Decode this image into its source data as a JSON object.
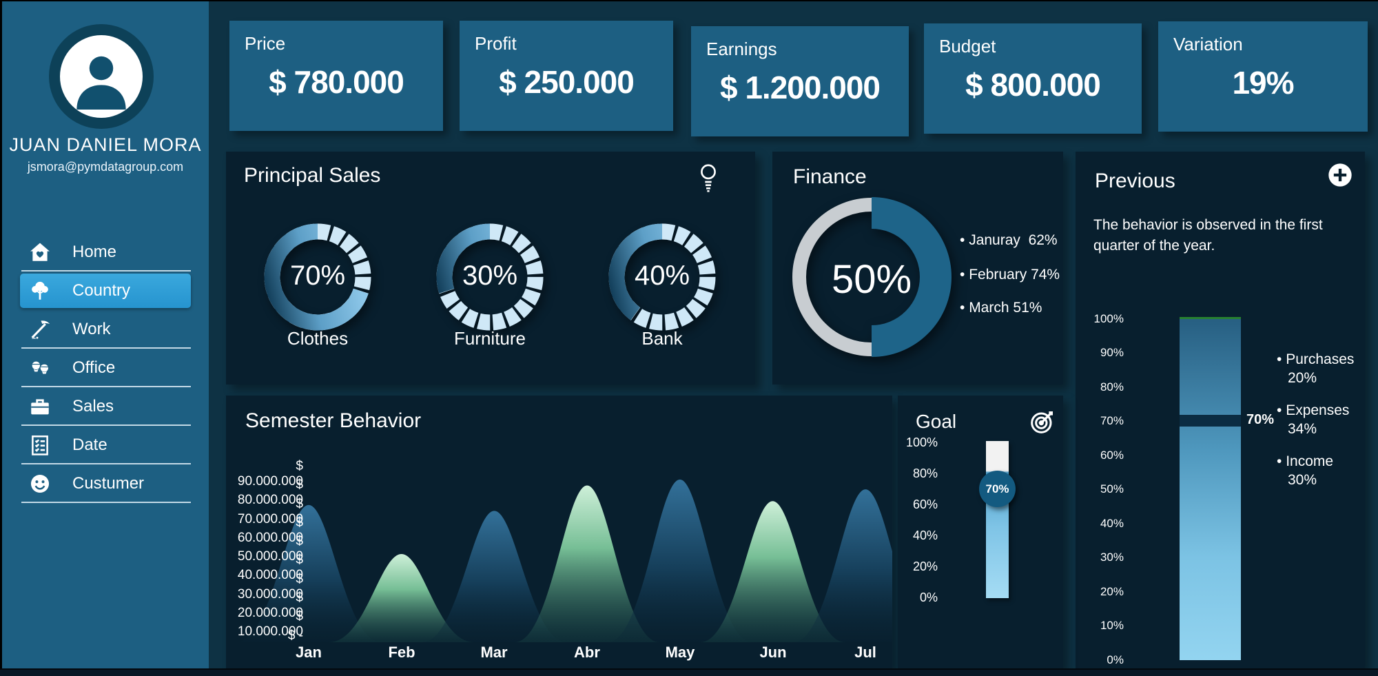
{
  "app": {
    "background": "#0e3244",
    "panel_color": "#081f2e",
    "card_color": "#1d5f82",
    "accent": "#2e9fd6",
    "tick_blue": "#cfe8f7"
  },
  "sidebar": {
    "name": "JUAN DANIEL MORA",
    "email": "jsmora@pymdatagroup.com",
    "items": [
      {
        "label": "Home",
        "icon": "home-icon",
        "active": false
      },
      {
        "label": "Country",
        "icon": "tree-icon",
        "active": true
      },
      {
        "label": "Work",
        "icon": "pickaxe-icon",
        "active": false
      },
      {
        "label": "Office",
        "icon": "workers-icon",
        "active": false
      },
      {
        "label": "Sales",
        "icon": "briefcase-icon",
        "active": false
      },
      {
        "label": "Date",
        "icon": "checklist-icon",
        "active": false
      },
      {
        "label": "Custumer",
        "icon": "smiley-icon",
        "active": false
      }
    ]
  },
  "kpis": [
    {
      "label": "Price",
      "value": "$ 780.000"
    },
    {
      "label": "Profit",
      "value": "$ 250.000"
    },
    {
      "label": "Earnings",
      "value": "$ 1.200.000"
    },
    {
      "label": "Budget",
      "value": "$ 800.000"
    },
    {
      "label": "Variation",
      "value": "19%"
    }
  ],
  "panels": {
    "principal_sales": {
      "title": "Principal Sales",
      "icon": "lightbulb-icon",
      "donuts": [
        {
          "label": "Clothes",
          "percent_label": "70%"
        },
        {
          "label": "Furniture",
          "percent_label": "30%"
        },
        {
          "label": "Bank",
          "percent_label": "40%"
        }
      ]
    },
    "finance": {
      "title": "Finance",
      "center_label": "50%",
      "legend": [
        {
          "label": "Januray",
          "value": "62%"
        },
        {
          "label": "February",
          "value": "74%"
        },
        {
          "label": "March",
          "value": "51%"
        }
      ]
    },
    "previous": {
      "title": "Previous",
      "icon": "plus-icon",
      "description": "The behavior is observed in the first quarter of the year.",
      "axis_ticks": [
        "100%",
        "90%",
        "80%",
        "70%",
        "60%",
        "50%",
        "40%",
        "30%",
        "20%",
        "10%",
        "0%"
      ],
      "marker_label": "70%",
      "legend": [
        {
          "label": "Purchases",
          "value": "20%"
        },
        {
          "label": "Expenses",
          "value": "34%"
        },
        {
          "label": "Income",
          "value": "30%"
        }
      ]
    },
    "semester": {
      "title": "Semester Behavior",
      "y_ticks": [
        "$ 90.000.000",
        "$ 80.000.000",
        "$ 70.000.000",
        "$ 60.000.000",
        "$ 50.000.000",
        "$ 40.000.000",
        "$ 30.000.000",
        "$ 20.000.000",
        "$ 10.000.000",
        "$ -"
      ]
    },
    "goal": {
      "title": "Goal",
      "icon": "target-icon",
      "axis_ticks": [
        "100%",
        "80%",
        "60%",
        "40%",
        "20%",
        "0%"
      ],
      "knob_label": "70%"
    }
  },
  "chart_data": [
    {
      "type": "donut",
      "title": "Principal Sales",
      "categories": [
        "Clothes",
        "Furniture",
        "Bank"
      ],
      "values": [
        70,
        30,
        40
      ],
      "unit": "%"
    },
    {
      "type": "donut",
      "title": "Finance",
      "value": 50,
      "unit": "%",
      "legend": [
        {
          "label": "Januray",
          "value": 62
        },
        {
          "label": "February",
          "value": 74
        },
        {
          "label": "March",
          "value": 51
        }
      ]
    },
    {
      "type": "area",
      "title": "Semester Behavior",
      "categories": [
        "Jan",
        "Feb",
        "Mar",
        "Abr",
        "May",
        "Jun",
        "Jul"
      ],
      "values": [
        70000000,
        45000000,
        67000000,
        80000000,
        83000000,
        72000000,
        78000000
      ],
      "series_colors": [
        "blue",
        "green",
        "blue",
        "green",
        "blue",
        "green",
        "blue"
      ],
      "ylabel": "$",
      "ylim": [
        0,
        90000000
      ],
      "y_tick_step": 10000000,
      "grid": false
    },
    {
      "type": "gauge",
      "title": "Goal",
      "value": 70,
      "unit": "%",
      "range": [
        0,
        100
      ]
    },
    {
      "type": "gauge",
      "title": "Previous",
      "value": 70,
      "unit": "%",
      "range": [
        0,
        100
      ],
      "legend": [
        {
          "label": "Purchases",
          "value": 20
        },
        {
          "label": "Expenses",
          "value": 34
        },
        {
          "label": "Income",
          "value": 30
        }
      ]
    }
  ]
}
